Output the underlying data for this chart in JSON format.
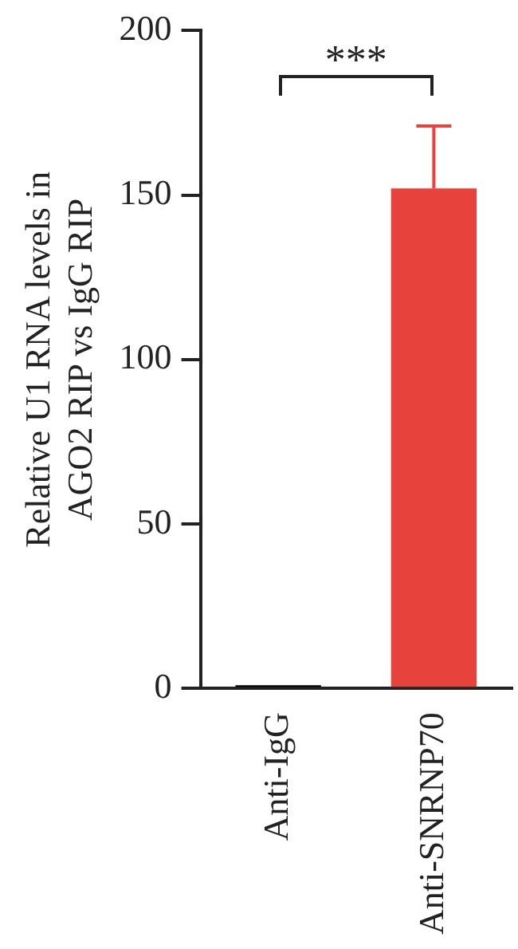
{
  "chart_data": {
    "type": "bar",
    "ylabel": "Relative U1 RNA levels in AGO2 RIP vs IgG RIP",
    "categories": [
      "Anti-IgG",
      "Anti-SNRNP70"
    ],
    "values": [
      1,
      152
    ],
    "colors": [
      "#000000",
      "#e8423d"
    ],
    "errors": [
      null,
      [
        152,
        171
      ]
    ],
    "ylim": [
      0,
      200
    ],
    "yticks": [
      0,
      50,
      100,
      150,
      200
    ],
    "grid": false,
    "legend": false,
    "annotations": [
      "***"
    ]
  }
}
